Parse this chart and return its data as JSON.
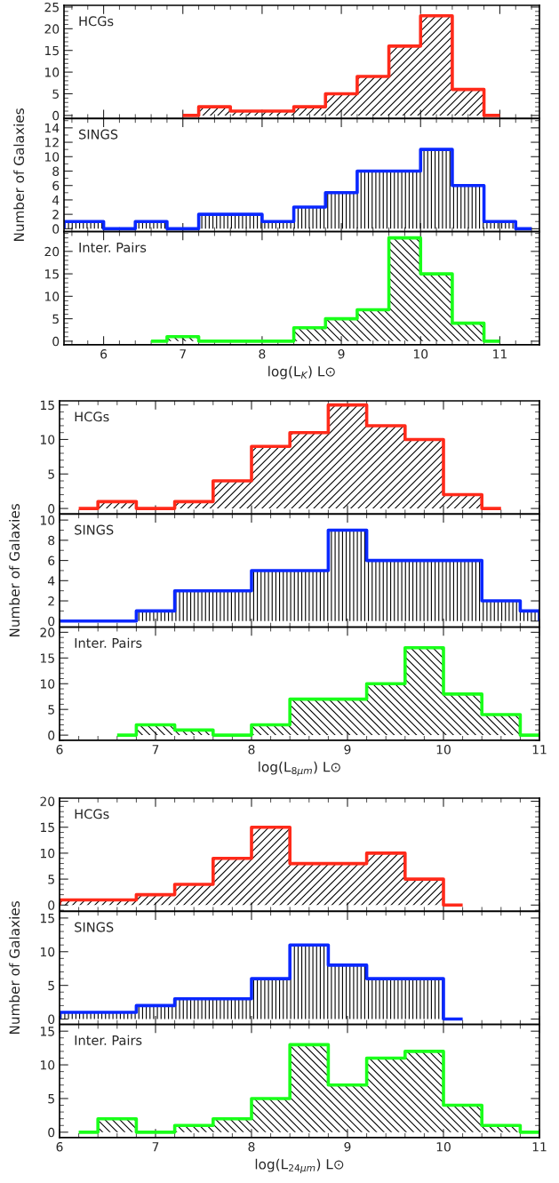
{
  "chart_data": [
    {
      "type": "histogram",
      "annotations": [
        "HCGs"
      ],
      "color": "#ff2a1a",
      "bins": [
        7.0,
        7.2,
        7.6,
        8.0,
        8.4,
        8.8,
        9.2,
        9.6,
        10.0,
        10.4,
        10.8,
        11.0
      ],
      "values": [
        0,
        2,
        1,
        1,
        2,
        5,
        9,
        16,
        23,
        6,
        0
      ],
      "xlim": [
        5.5,
        11.5
      ],
      "xticks": [
        6,
        7,
        8,
        9,
        10,
        11
      ],
      "ylim": [
        -0.7,
        25.4
      ],
      "yticks": [
        0,
        5,
        10,
        15,
        20,
        25
      ],
      "tick_labels": "y"
    },
    {
      "type": "histogram",
      "annotations": [
        "SINGS"
      ],
      "ylabel": "Number of Galaxies",
      "color": "#0a28ff",
      "bins": [
        5.5,
        6.0,
        6.4,
        6.8,
        7.2,
        7.6,
        8.0,
        8.4,
        8.8,
        9.2,
        9.6,
        10.0,
        10.4,
        10.8,
        11.2,
        11.4
      ],
      "values": [
        1,
        0,
        1,
        0,
        2,
        2,
        1,
        3,
        5,
        8,
        8,
        11,
        6,
        1,
        0
      ],
      "xlim": [
        5.5,
        11.5
      ],
      "xticks": [
        6,
        7,
        8,
        9,
        10,
        11
      ],
      "ylim": [
        -0.4,
        15.3
      ],
      "yticks": [
        0,
        2,
        4,
        6,
        8,
        10,
        12,
        14
      ],
      "tick_labels": "y"
    },
    {
      "type": "histogram",
      "annotations": [
        "Inter. Pairs"
      ],
      "xlabel": "log(L$_{K}$) L⊙",
      "color": "#1aff1a",
      "bins": [
        6.6,
        6.8,
        7.2,
        7.6,
        8.0,
        8.4,
        8.8,
        9.2,
        9.6,
        10.0,
        10.4,
        10.8,
        11.0
      ],
      "values": [
        0,
        1,
        0,
        0,
        0,
        3,
        5,
        7,
        23,
        15,
        4,
        0
      ],
      "xlim": [
        5.5,
        11.5
      ],
      "xticks": [
        6,
        7,
        8,
        9,
        10,
        11
      ],
      "ylim": [
        -0.8,
        24.4
      ],
      "yticks": [
        0,
        5,
        10,
        15,
        20
      ]
    },
    {
      "type": "histogram",
      "annotations": [
        "HCGs"
      ],
      "color": "#ff2a1a",
      "bins": [
        6.2,
        6.4,
        6.8,
        7.2,
        7.6,
        8.0,
        8.4,
        8.8,
        9.2,
        9.6,
        10.0,
        10.4,
        10.6
      ],
      "values": [
        0,
        1,
        0,
        1,
        4,
        9,
        11,
        15,
        12,
        10,
        2,
        0
      ],
      "xlim": [
        6,
        11
      ],
      "xticks": [
        6,
        7,
        8,
        9,
        10,
        11
      ],
      "ylim": [
        -0.8,
        15.6
      ],
      "yticks": [
        0,
        5,
        10,
        15
      ],
      "tick_labels": "y"
    },
    {
      "type": "histogram",
      "annotations": [
        "SINGS"
      ],
      "ylabel": "Number of Galaxies",
      "color": "#0a28ff",
      "bins": [
        6.0,
        6.4,
        6.8,
        7.2,
        7.6,
        8.0,
        8.4,
        8.8,
        9.2,
        9.6,
        10.0,
        10.4,
        10.8,
        11.0
      ],
      "values": [
        0,
        0,
        1,
        3,
        3,
        5,
        5,
        9,
        6,
        6,
        6,
        2,
        1
      ],
      "xlim": [
        6,
        11
      ],
      "xticks": [
        6,
        7,
        8,
        9,
        10,
        11
      ],
      "ylim": [
        -0.6,
        10.6
      ],
      "yticks": [
        0,
        2,
        4,
        6,
        8,
        10
      ],
      "tick_labels": "y"
    },
    {
      "type": "histogram",
      "annotations": [
        "Inter. Pairs"
      ],
      "xlabel": "log(L$_{8μm}$) L⊙",
      "color": "#1aff1a",
      "bins": [
        6.6,
        6.8,
        7.2,
        7.6,
        8.0,
        8.4,
        8.8,
        9.2,
        9.6,
        10.0,
        10.4,
        10.8,
        11.0
      ],
      "values": [
        0,
        2,
        1,
        0,
        2,
        7,
        7,
        10,
        17,
        8,
        4,
        0
      ],
      "xlim": [
        6,
        11
      ],
      "xticks": [
        6,
        7,
        8,
        9,
        10,
        11
      ],
      "ylim": [
        -1,
        21
      ],
      "yticks": [
        0,
        5,
        10,
        15,
        20
      ]
    },
    {
      "type": "histogram",
      "annotations": [
        "HCGs"
      ],
      "color": "#ff2a1a",
      "bins": [
        6.0,
        6.4,
        6.8,
        7.2,
        7.6,
        8.0,
        8.4,
        8.8,
        9.2,
        9.6,
        10.0,
        10.2
      ],
      "values": [
        1,
        1,
        2,
        4,
        9,
        15,
        8,
        8,
        10,
        5,
        0
      ],
      "xlim": [
        6,
        11
      ],
      "xticks": [
        6,
        7,
        8,
        9,
        10,
        11
      ],
      "ylim": [
        -1.2,
        20.6
      ],
      "yticks": [
        0,
        5,
        10,
        15,
        20
      ],
      "tick_labels": "y"
    },
    {
      "type": "histogram",
      "annotations": [
        "SINGS"
      ],
      "ylabel": "Number of Galaxies",
      "color": "#0a28ff",
      "bins": [
        6.0,
        6.4,
        6.8,
        7.2,
        7.6,
        8.0,
        8.4,
        8.8,
        9.2,
        9.6,
        10.0,
        10.2
      ],
      "values": [
        1,
        1,
        2,
        3,
        3,
        6,
        11,
        8,
        6,
        6,
        0
      ],
      "xlim": [
        6,
        11
      ],
      "xticks": [
        6,
        7,
        8,
        9,
        10,
        11
      ],
      "ylim": [
        -0.8,
        16
      ],
      "yticks": [
        0,
        5,
        10,
        15
      ],
      "tick_labels": "y"
    },
    {
      "type": "histogram",
      "annotations": [
        "Inter. Pairs"
      ],
      "xlabel": "log(L$_{24μm}$) L⊙",
      "color": "#1aff1a",
      "bins": [
        6.2,
        6.4,
        6.8,
        7.2,
        7.6,
        8.0,
        8.4,
        8.8,
        9.2,
        9.6,
        10.0,
        10.4,
        10.8,
        11.0
      ],
      "values": [
        0,
        2,
        0,
        1,
        2,
        5,
        13,
        7,
        11,
        12,
        4,
        1,
        0
      ],
      "xlim": [
        6,
        11
      ],
      "xticks": [
        6,
        7,
        8,
        9,
        10,
        11
      ],
      "ylim": [
        -0.8,
        16
      ],
      "yticks": [
        0,
        5,
        10,
        15
      ]
    }
  ]
}
